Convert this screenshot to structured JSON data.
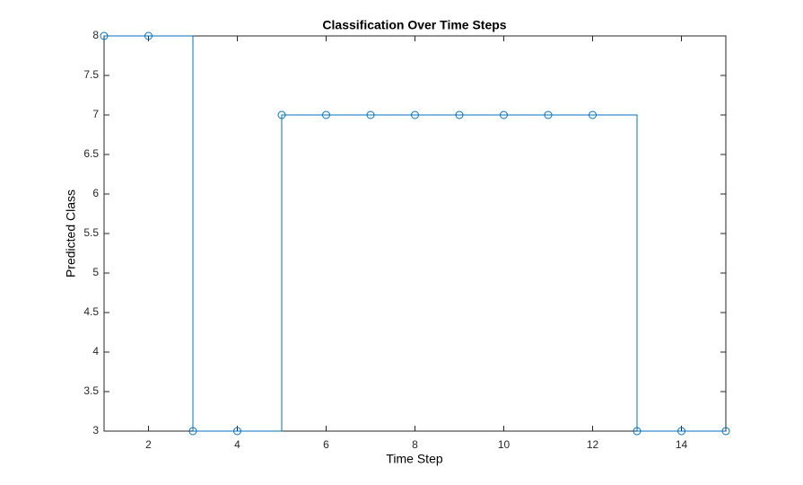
{
  "chart_data": {
    "type": "stairs",
    "title": "Classification Over Time Steps",
    "x_label": "Time Step",
    "y_label": "Predicted Class",
    "x": [
      1,
      2,
      3,
      4,
      5,
      6,
      7,
      8,
      9,
      10,
      11,
      12,
      13,
      14,
      15
    ],
    "values": [
      8,
      8,
      3,
      3,
      7,
      7,
      7,
      7,
      7,
      7,
      7,
      7,
      3,
      3,
      3
    ],
    "color": "#0072bd",
    "marker": "circle",
    "xlim": [
      1,
      15
    ],
    "xticks": [
      2,
      4,
      6,
      8,
      10,
      12,
      14
    ],
    "ylim": [
      3,
      8
    ],
    "yticks": [
      3,
      3.5,
      4,
      4.5,
      5,
      5.5,
      6,
      6.5,
      7,
      7.5,
      8
    ],
    "grid": false
  }
}
